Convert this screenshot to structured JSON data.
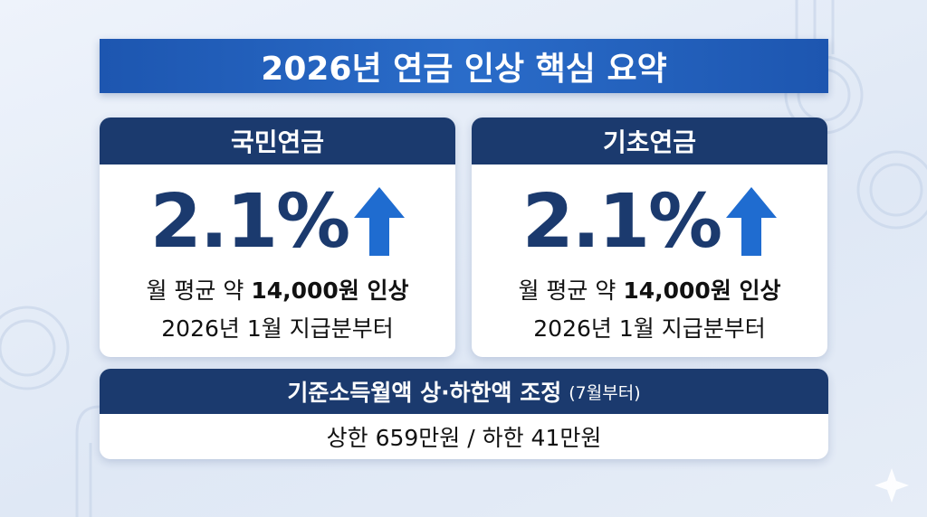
{
  "title": "2026년 연금 인상 핵심 요약",
  "cards": [
    {
      "header": "국민연금",
      "rate": "2.1%",
      "line1_prefix": "월 평균 약",
      "line1_bold": "14,000원 인상",
      "line2": "2026년 1월 지급분부터"
    },
    {
      "header": "기초연금",
      "rate": "2.1%",
      "line1_prefix": "월 평균 약",
      "line1_bold": "14,000원 인상",
      "line2": "2026년 1월 지급분부터"
    }
  ],
  "bottom": {
    "header": "기준소득월액 상·하한액 조정",
    "note": "(7월부터)",
    "body": "상한 659만원 / 하한 41만원"
  }
}
